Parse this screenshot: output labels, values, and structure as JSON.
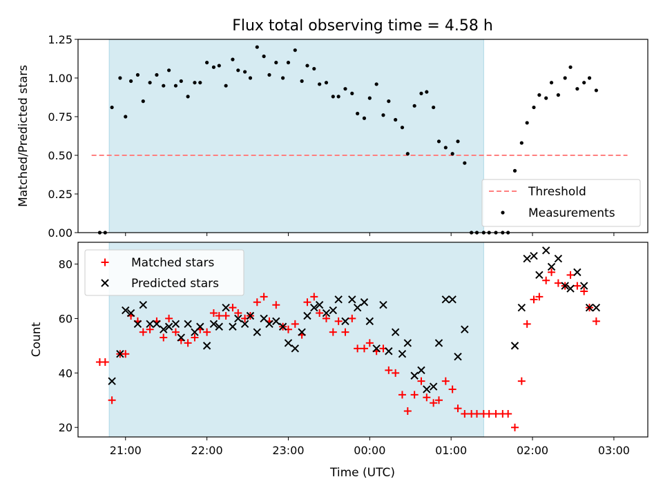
{
  "figure": {
    "title": "Flux total observing time = 4.58 h",
    "xlabel": "Time (UTC)"
  },
  "colors": {
    "shade": "#add8e6",
    "threshold": "#ff7f7f",
    "measurements": "#000000",
    "matched": "#ff0000",
    "predicted": "#000000"
  },
  "chart_data": [
    {
      "type": "scatter",
      "ylabel": "Matched/Predicted stars",
      "xlim": [
        "20:25",
        "03:25"
      ],
      "ylim": [
        0,
        1.25
      ],
      "yticks": [
        "0.00",
        "0.25",
        "0.50",
        "0.75",
        "1.00",
        "1.25"
      ],
      "xticks": [
        "21:00",
        "22:00",
        "23:00",
        "00:00",
        "01:00",
        "02:00",
        "03:00"
      ],
      "shaded_span": [
        "20:48",
        "01:24"
      ],
      "threshold": {
        "name": "Threshold",
        "y": 0.5,
        "x": [
          "20:35",
          "03:10"
        ]
      },
      "legend": {
        "position": "bottom-right",
        "entries": [
          "Threshold",
          "Measurements"
        ]
      },
      "series": [
        {
          "name": "Measurements",
          "marker": "dot",
          "points": [
            [
              "20:41",
              0.0
            ],
            [
              "20:45",
              0.0
            ],
            [
              "20:50",
              0.81
            ],
            [
              "20:56",
              1.0
            ],
            [
              "21:00",
              0.75
            ],
            [
              "21:04",
              0.98
            ],
            [
              "21:09",
              1.02
            ],
            [
              "21:13",
              0.85
            ],
            [
              "21:18",
              0.97
            ],
            [
              "21:23",
              1.02
            ],
            [
              "21:28",
              0.95
            ],
            [
              "21:32",
              1.05
            ],
            [
              "21:37",
              0.95
            ],
            [
              "21:41",
              0.98
            ],
            [
              "21:46",
              0.88
            ],
            [
              "21:51",
              0.97
            ],
            [
              "21:55",
              0.97
            ],
            [
              "22:00",
              1.1
            ],
            [
              "22:05",
              1.07
            ],
            [
              "22:09",
              1.08
            ],
            [
              "22:14",
              0.95
            ],
            [
              "22:19",
              1.12
            ],
            [
              "22:23",
              1.05
            ],
            [
              "22:28",
              1.04
            ],
            [
              "22:32",
              1.0
            ],
            [
              "22:37",
              1.2
            ],
            [
              "22:42",
              1.14
            ],
            [
              "22:46",
              1.02
            ],
            [
              "22:51",
              1.1
            ],
            [
              "22:56",
              1.0
            ],
            [
              "23:00",
              1.1
            ],
            [
              "23:05",
              1.18
            ],
            [
              "23:10",
              0.98
            ],
            [
              "23:14",
              1.08
            ],
            [
              "23:19",
              1.06
            ],
            [
              "23:23",
              0.96
            ],
            [
              "23:28",
              0.97
            ],
            [
              "23:33",
              0.88
            ],
            [
              "23:37",
              0.88
            ],
            [
              "23:42",
              0.93
            ],
            [
              "23:47",
              0.9
            ],
            [
              "23:51",
              0.77
            ],
            [
              "23:56",
              0.74
            ],
            [
              "00:00",
              0.87
            ],
            [
              "00:05",
              0.96
            ],
            [
              "00:10",
              0.76
            ],
            [
              "00:14",
              0.85
            ],
            [
              "00:19",
              0.73
            ],
            [
              "00:24",
              0.68
            ],
            [
              "00:28",
              0.51
            ],
            [
              "00:33",
              0.82
            ],
            [
              "00:38",
              0.9
            ],
            [
              "00:42",
              0.91
            ],
            [
              "00:47",
              0.81
            ],
            [
              "00:51",
              0.59
            ],
            [
              "00:56",
              0.55
            ],
            [
              "01:01",
              0.51
            ],
            [
              "01:05",
              0.59
            ],
            [
              "01:10",
              0.45
            ],
            [
              "01:15",
              0.0
            ],
            [
              "01:19",
              0.0
            ],
            [
              "01:24",
              0.0
            ],
            [
              "01:28",
              0.0
            ],
            [
              "01:33",
              0.0
            ],
            [
              "01:38",
              0.0
            ],
            [
              "01:42",
              0.0
            ],
            [
              "01:47",
              0.4
            ],
            [
              "01:52",
              0.58
            ],
            [
              "01:56",
              0.71
            ],
            [
              "02:01",
              0.81
            ],
            [
              "02:05",
              0.89
            ],
            [
              "02:10",
              0.87
            ],
            [
              "02:14",
              0.97
            ],
            [
              "02:19",
              0.89
            ],
            [
              "02:24",
              1.0
            ],
            [
              "02:28",
              1.07
            ],
            [
              "02:33",
              0.93
            ],
            [
              "02:38",
              0.97
            ],
            [
              "02:42",
              1.0
            ],
            [
              "02:47",
              0.92
            ]
          ]
        }
      ]
    },
    {
      "type": "scatter",
      "ylabel": "Count",
      "xlim": [
        "20:25",
        "03:25"
      ],
      "ylim": [
        16.5,
        88
      ],
      "yticks": [
        "20",
        "40",
        "60",
        "80"
      ],
      "xticks": [
        "21:00",
        "22:00",
        "23:00",
        "00:00",
        "01:00",
        "02:00",
        "03:00"
      ],
      "shaded_span": [
        "20:48",
        "01:24"
      ],
      "legend": {
        "position": "top-left",
        "entries": [
          "Matched stars",
          "Predicted stars"
        ]
      },
      "series": [
        {
          "name": "Matched stars",
          "marker": "plus",
          "points": [
            [
              "20:41",
              44
            ],
            [
              "20:45",
              44
            ],
            [
              "20:50",
              30
            ],
            [
              "20:56",
              47
            ],
            [
              "21:00",
              47
            ],
            [
              "21:04",
              61
            ],
            [
              "21:09",
              59
            ],
            [
              "21:13",
              55
            ],
            [
              "21:18",
              56
            ],
            [
              "21:23",
              59
            ],
            [
              "21:28",
              53
            ],
            [
              "21:32",
              60
            ],
            [
              "21:37",
              55
            ],
            [
              "21:41",
              52
            ],
            [
              "21:46",
              51
            ],
            [
              "21:51",
              53
            ],
            [
              "21:55",
              56
            ],
            [
              "22:00",
              55
            ],
            [
              "22:05",
              62
            ],
            [
              "22:09",
              61
            ],
            [
              "22:14",
              61
            ],
            [
              "22:19",
              64
            ],
            [
              "22:23",
              62
            ],
            [
              "22:28",
              60
            ],
            [
              "22:32",
              61
            ],
            [
              "22:37",
              66
            ],
            [
              "22:42",
              68
            ],
            [
              "22:46",
              59
            ],
            [
              "22:51",
              65
            ],
            [
              "22:56",
              57
            ],
            [
              "23:00",
              56
            ],
            [
              "23:05",
              58
            ],
            [
              "23:10",
              54
            ],
            [
              "23:14",
              66
            ],
            [
              "23:19",
              68
            ],
            [
              "23:23",
              62
            ],
            [
              "23:28",
              60
            ],
            [
              "23:33",
              55
            ],
            [
              "23:37",
              59
            ],
            [
              "23:42",
              55
            ],
            [
              "23:47",
              60
            ],
            [
              "23:51",
              49
            ],
            [
              "23:56",
              49
            ],
            [
              "00:00",
              51
            ],
            [
              "00:05",
              48
            ],
            [
              "00:10",
              49
            ],
            [
              "00:14",
              41
            ],
            [
              "00:19",
              40
            ],
            [
              "00:24",
              32
            ],
            [
              "00:28",
              26
            ],
            [
              "00:33",
              32
            ],
            [
              "00:38",
              37
            ],
            [
              "00:42",
              31
            ],
            [
              "00:47",
              29
            ],
            [
              "00:51",
              30
            ],
            [
              "00:56",
              37
            ],
            [
              "01:01",
              34
            ],
            [
              "01:05",
              27
            ],
            [
              "01:10",
              25
            ],
            [
              "01:15",
              25
            ],
            [
              "01:19",
              25
            ],
            [
              "01:24",
              25
            ],
            [
              "01:28",
              25
            ],
            [
              "01:33",
              25
            ],
            [
              "01:38",
              25
            ],
            [
              "01:42",
              25
            ],
            [
              "01:47",
              20
            ],
            [
              "01:52",
              37
            ],
            [
              "01:56",
              58
            ],
            [
              "02:01",
              67
            ],
            [
              "02:05",
              68
            ],
            [
              "02:10",
              74
            ],
            [
              "02:14",
              77
            ],
            [
              "02:19",
              73
            ],
            [
              "02:24",
              72
            ],
            [
              "02:28",
              76
            ],
            [
              "02:33",
              72
            ],
            [
              "02:38",
              70
            ],
            [
              "02:42",
              64
            ],
            [
              "02:47",
              59
            ]
          ]
        },
        {
          "name": "Predicted stars",
          "marker": "x",
          "points": [
            [
              "20:50",
              37
            ],
            [
              "20:56",
              47
            ],
            [
              "21:00",
              63
            ],
            [
              "21:04",
              62
            ],
            [
              "21:09",
              58
            ],
            [
              "21:13",
              65
            ],
            [
              "21:18",
              58
            ],
            [
              "21:23",
              58
            ],
            [
              "21:28",
              56
            ],
            [
              "21:32",
              57
            ],
            [
              "21:37",
              58
            ],
            [
              "21:41",
              53
            ],
            [
              "21:46",
              58
            ],
            [
              "21:51",
              55
            ],
            [
              "21:55",
              57
            ],
            [
              "22:00",
              50
            ],
            [
              "22:05",
              58
            ],
            [
              "22:09",
              57
            ],
            [
              "22:14",
              64
            ],
            [
              "22:19",
              57
            ],
            [
              "22:23",
              60
            ],
            [
              "22:28",
              58
            ],
            [
              "22:32",
              61
            ],
            [
              "22:37",
              55
            ],
            [
              "22:42",
              60
            ],
            [
              "22:46",
              58
            ],
            [
              "22:51",
              59
            ],
            [
              "22:56",
              57
            ],
            [
              "23:00",
              51
            ],
            [
              "23:05",
              49
            ],
            [
              "23:10",
              55
            ],
            [
              "23:14",
              61
            ],
            [
              "23:19",
              64
            ],
            [
              "23:23",
              65
            ],
            [
              "23:28",
              62
            ],
            [
              "23:33",
              63
            ],
            [
              "23:37",
              67
            ],
            [
              "23:42",
              59
            ],
            [
              "23:47",
              67
            ],
            [
              "23:51",
              64
            ],
            [
              "23:56",
              66
            ],
            [
              "00:00",
              59
            ],
            [
              "00:05",
              49
            ],
            [
              "00:10",
              65
            ],
            [
              "00:14",
              48
            ],
            [
              "00:19",
              55
            ],
            [
              "00:24",
              47
            ],
            [
              "00:28",
              51
            ],
            [
              "00:33",
              39
            ],
            [
              "00:38",
              41
            ],
            [
              "00:42",
              34
            ],
            [
              "00:47",
              35
            ],
            [
              "00:51",
              51
            ],
            [
              "00:56",
              67
            ],
            [
              "01:01",
              67
            ],
            [
              "01:05",
              46
            ],
            [
              "01:10",
              56
            ],
            [
              "01:47",
              50
            ],
            [
              "01:52",
              64
            ],
            [
              "01:56",
              82
            ],
            [
              "02:01",
              83
            ],
            [
              "02:05",
              76
            ],
            [
              "02:10",
              85
            ],
            [
              "02:14",
              79
            ],
            [
              "02:19",
              82
            ],
            [
              "02:24",
              72
            ],
            [
              "02:28",
              71
            ],
            [
              "02:33",
              77
            ],
            [
              "02:38",
              72
            ],
            [
              "02:42",
              64
            ],
            [
              "02:47",
              64
            ]
          ]
        }
      ]
    }
  ]
}
